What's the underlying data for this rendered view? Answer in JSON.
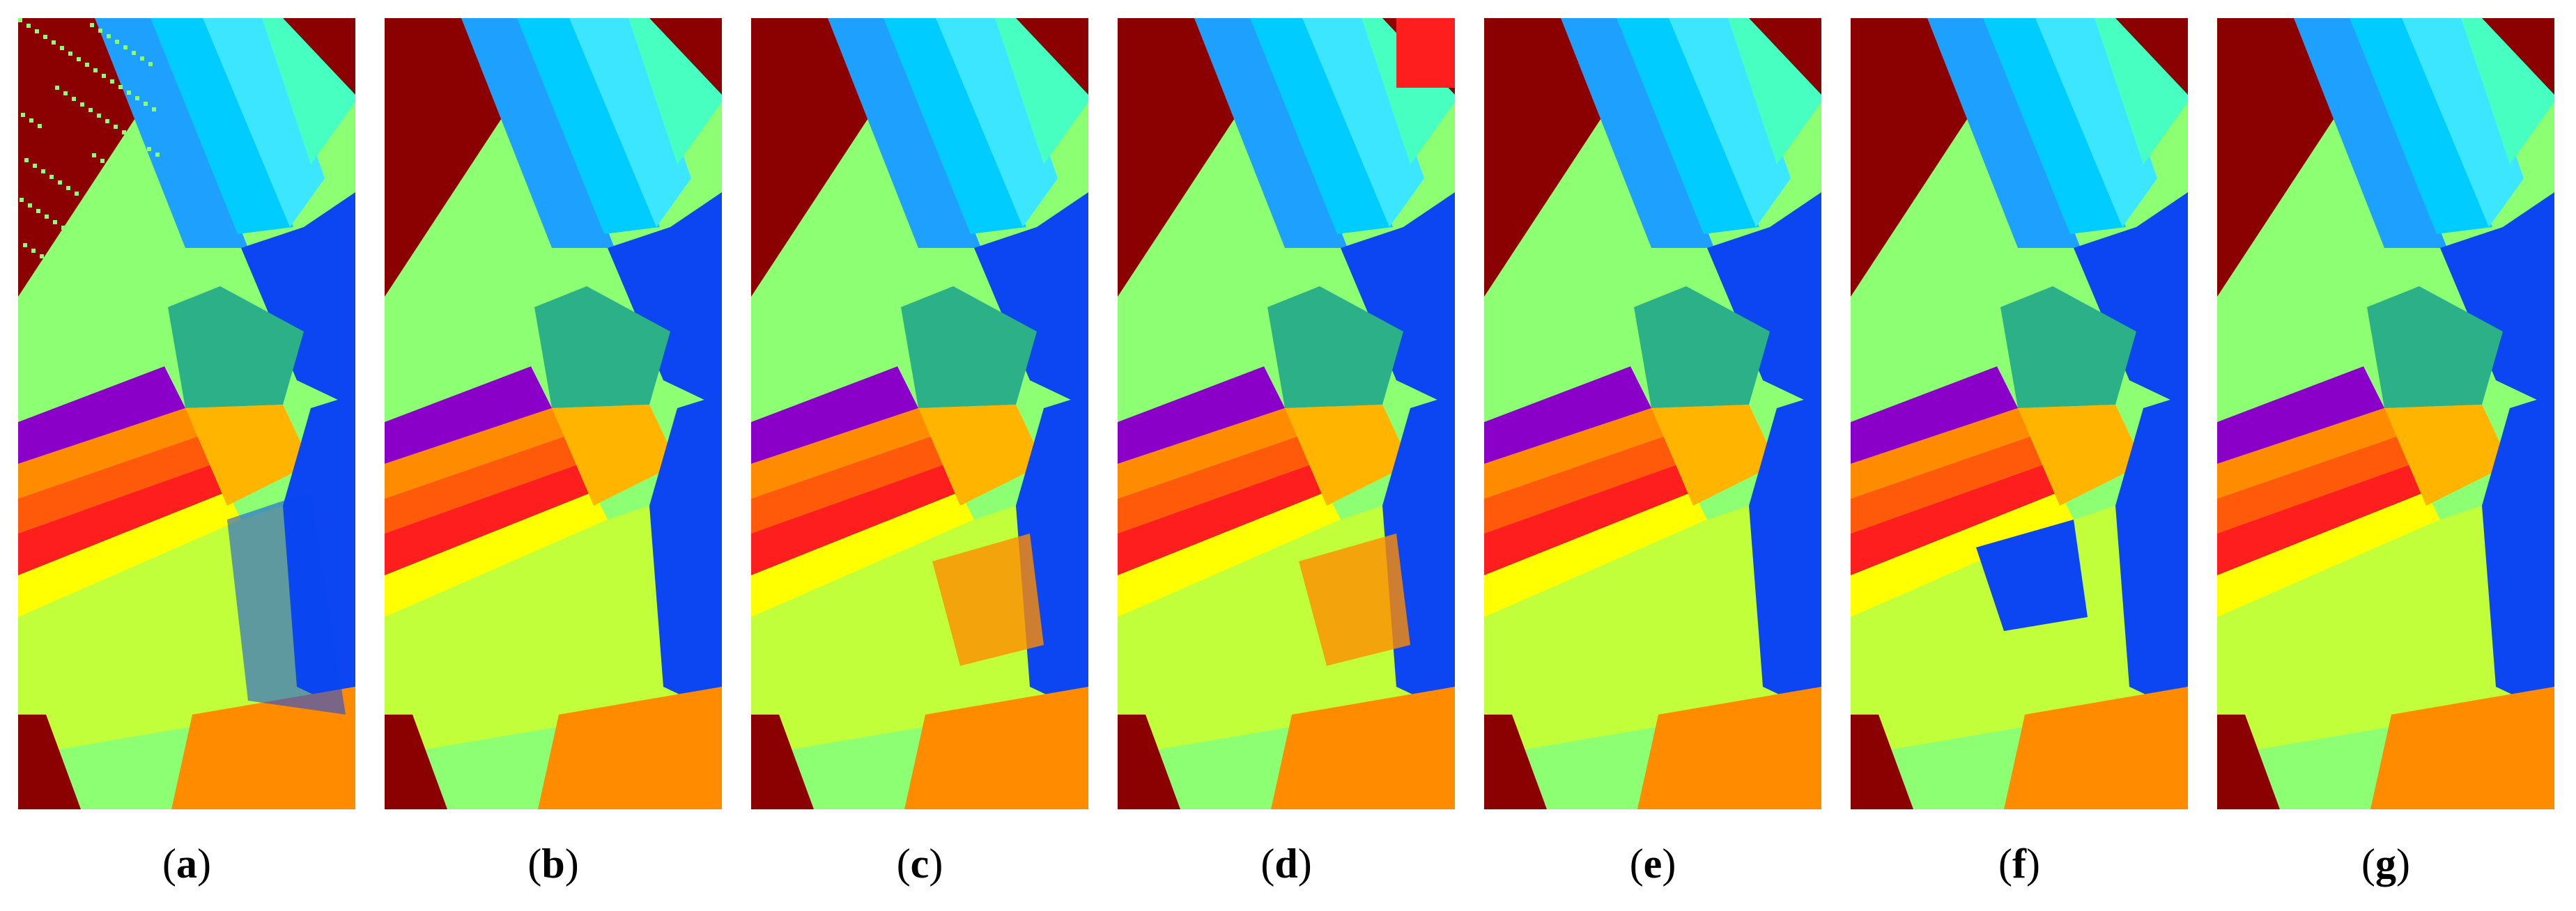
{
  "panels": [
    {
      "id": "a",
      "paren_open": "(",
      "letter": "a",
      "paren_close": ")"
    },
    {
      "id": "b",
      "paren_open": "(",
      "letter": "b",
      "paren_close": ")"
    },
    {
      "id": "c",
      "paren_open": "(",
      "letter": "c",
      "paren_close": ")"
    },
    {
      "id": "d",
      "paren_open": "(",
      "letter": "d",
      "paren_close": ")"
    },
    {
      "id": "e",
      "paren_open": "(",
      "letter": "e",
      "paren_close": ")"
    },
    {
      "id": "f",
      "paren_open": "(",
      "letter": "f",
      "paren_close": ")"
    },
    {
      "id": "g",
      "paren_open": "(",
      "letter": "g",
      "paren_close": ")"
    }
  ],
  "colors": {
    "dark_red": "#8B0000",
    "light_green": "#8CFF73",
    "cyan_light": "#3CE6FF",
    "cyan": "#00CCFF",
    "sky_blue": "#1EA0FF",
    "blue": "#0B46F2",
    "teal": "#2BB088",
    "aqua_green": "#46FFC0",
    "purple": "#8A00C8",
    "orange": "#FF8C00",
    "dark_orange": "#FF5A0A",
    "red": "#FF1E1E",
    "yellow": "#FFFF00",
    "yellow_green": "#C0FF3A",
    "gold": "#FFB400"
  }
}
